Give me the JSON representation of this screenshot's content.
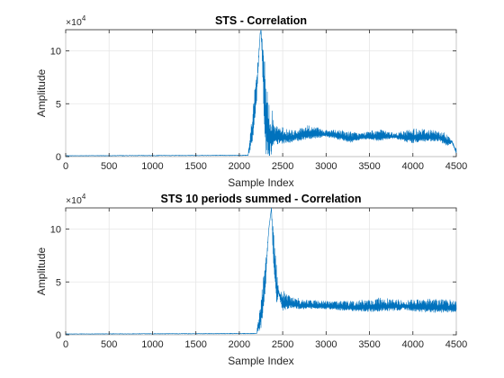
{
  "chart_data": [
    {
      "type": "line",
      "title": "STS - Correlation",
      "xlabel": "Sample Index",
      "ylabel": "Amplitude",
      "y_exponent_label": {
        "base": "×10",
        "power": "4"
      },
      "xlim": [
        0,
        4500
      ],
      "ylim": [
        0,
        12
      ],
      "xticks": [
        0,
        500,
        1000,
        1500,
        2000,
        2500,
        3000,
        3500,
        4000,
        4500
      ],
      "yticks": [
        0,
        5,
        10
      ],
      "grid": true,
      "line_color": "#0072BD",
      "envelope": [
        [
          0,
          0.1
        ],
        [
          2100,
          0.15
        ],
        [
          2150,
          2.5
        ],
        [
          2200,
          6.5
        ],
        [
          2240,
          11.5
        ],
        [
          2250,
          12.0
        ],
        [
          2270,
          9.0
        ],
        [
          2300,
          4.2
        ],
        [
          2350,
          2.5
        ],
        [
          2400,
          2.0
        ],
        [
          2600,
          1.9
        ],
        [
          2800,
          2.3
        ],
        [
          3100,
          2.1
        ],
        [
          3300,
          1.8
        ],
        [
          3500,
          2.0
        ],
        [
          3700,
          2.0
        ],
        [
          3900,
          1.9
        ],
        [
          4100,
          2.0
        ],
        [
          4300,
          1.9
        ],
        [
          4450,
          1.4
        ],
        [
          4500,
          0.5
        ]
      ],
      "ceiling": [
        [
          2100,
          0.2
        ],
        [
          2250,
          12.0
        ],
        [
          2400,
          3.0
        ],
        [
          2600,
          2.5
        ],
        [
          2800,
          3.0
        ],
        [
          3000,
          2.5
        ],
        [
          3200,
          2.5
        ],
        [
          3400,
          2.2
        ],
        [
          3600,
          2.6
        ],
        [
          3800,
          2.2
        ],
        [
          4000,
          2.7
        ],
        [
          4200,
          2.6
        ],
        [
          4400,
          2.2
        ],
        [
          4500,
          0.8
        ]
      ]
    },
    {
      "type": "line",
      "title": "STS 10 periods summed - Correlation",
      "xlabel": "Sample Index",
      "ylabel": "Amplitude",
      "y_exponent_label": {
        "base": "×10",
        "power": "4"
      },
      "xlim": [
        0,
        4500
      ],
      "ylim": [
        0,
        12
      ],
      "xticks": [
        0,
        500,
        1000,
        1500,
        2000,
        2500,
        3000,
        3500,
        4000,
        4500
      ],
      "yticks": [
        0,
        5,
        10
      ],
      "grid": true,
      "line_color": "#0072BD",
      "envelope": [
        [
          0,
          0.1
        ],
        [
          2200,
          0.15
        ],
        [
          2250,
          2.0
        ],
        [
          2300,
          5.5
        ],
        [
          2340,
          10.0
        ],
        [
          2370,
          12.0
        ],
        [
          2390,
          8.5
        ],
        [
          2430,
          4.5
        ],
        [
          2500,
          3.2
        ],
        [
          2700,
          2.9
        ],
        [
          3000,
          2.8
        ],
        [
          3300,
          2.7
        ],
        [
          3600,
          2.8
        ],
        [
          3900,
          2.8
        ],
        [
          4200,
          2.7
        ],
        [
          4500,
          2.7
        ]
      ],
      "ceiling": [
        [
          2200,
          0.2
        ],
        [
          2370,
          12.0
        ],
        [
          2450,
          4.5
        ],
        [
          2600,
          3.6
        ],
        [
          2800,
          3.3
        ],
        [
          3000,
          3.2
        ],
        [
          3300,
          3.2
        ],
        [
          3600,
          3.5
        ],
        [
          3900,
          3.3
        ],
        [
          4200,
          3.4
        ],
        [
          4500,
          3.3
        ]
      ]
    }
  ]
}
